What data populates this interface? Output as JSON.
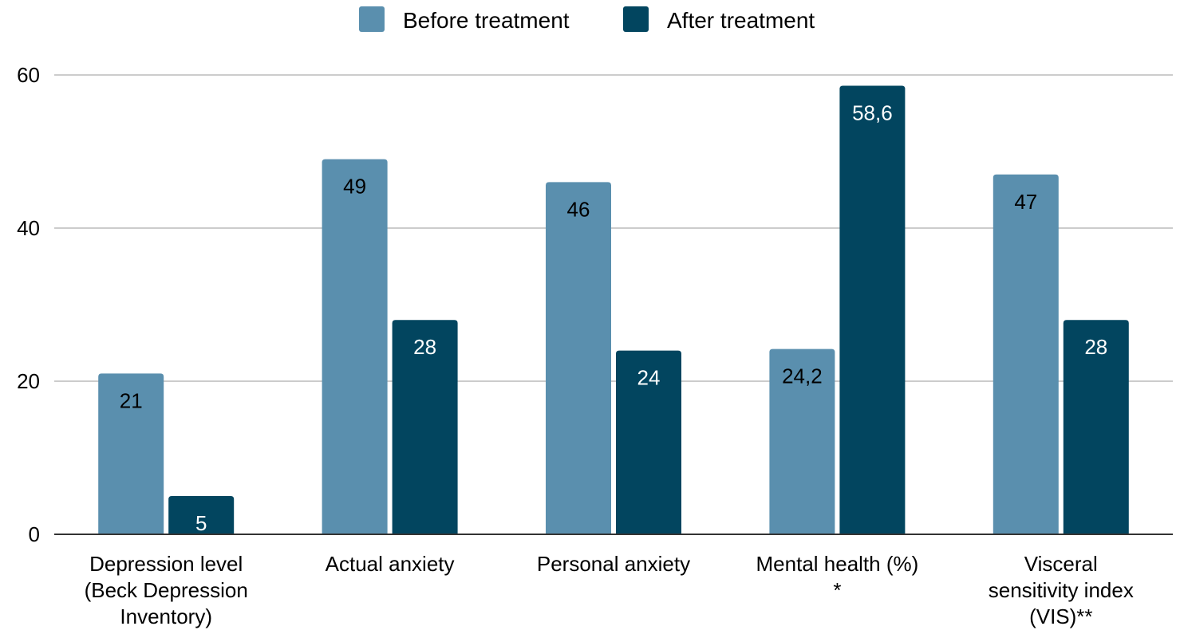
{
  "chart_data": {
    "type": "bar",
    "title": "",
    "xlabel": "",
    "ylabel": "",
    "categories": [
      [
        "Depression level",
        "(Beck Depression",
        "Inventory)"
      ],
      [
        "Actual anxiety"
      ],
      [
        "Personal anxiety"
      ],
      [
        "Mental health (%)",
        "*"
      ],
      [
        "Visceral",
        "sensitivity index",
        "(VIS)**"
      ]
    ],
    "series": [
      {
        "name": "Before treatment",
        "color": "#5a8fae",
        "label_color": "#000000",
        "values": [
          21,
          49,
          46,
          24.2,
          47
        ],
        "labels": [
          "21",
          "49",
          "46",
          "24,2",
          "47"
        ]
      },
      {
        "name": "After treatment",
        "color": "#02455f",
        "label_color": "#ffffff",
        "values": [
          5,
          28,
          24,
          58.6,
          28
        ],
        "labels": [
          "5",
          "28",
          "24",
          "58,6",
          "28"
        ]
      }
    ],
    "ylim": [
      0,
      60
    ],
    "yticks": [
      0,
      20,
      40,
      60
    ],
    "grid": true,
    "legend_position": "top-center"
  }
}
